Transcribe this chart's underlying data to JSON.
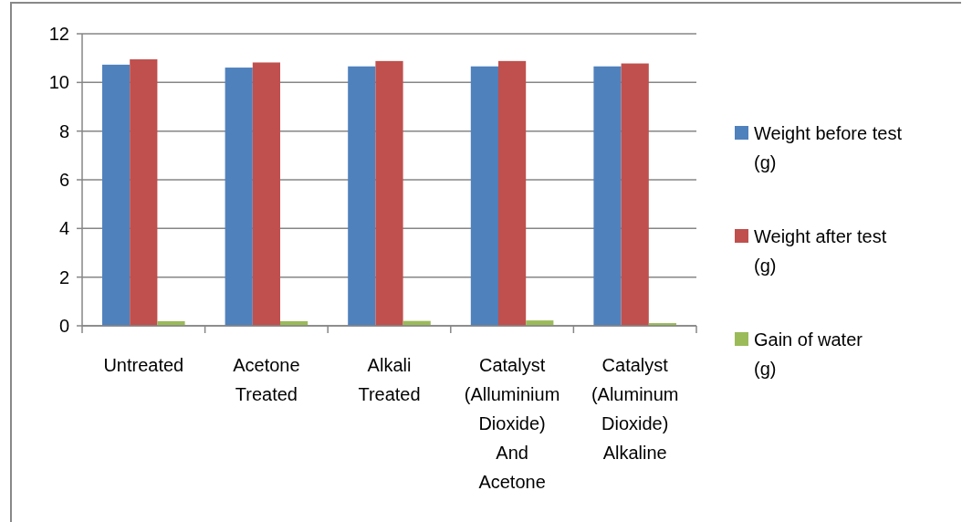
{
  "chart_data": {
    "type": "bar",
    "categories": [
      "Untreated",
      "Acetone Treated",
      "Alkali Treated",
      "Catalyst (Alluminium Dioxide) And Acetone",
      "Catalyst (Aluminum Dioxide) Alkaline"
    ],
    "series": [
      {
        "name": "Weight before test (g)",
        "color": "#4f81bd",
        "values": [
          10.73,
          10.61,
          10.66,
          10.66,
          10.66
        ]
      },
      {
        "name": "Weight after test (g)",
        "color": "#c0504d",
        "values": [
          10.95,
          10.82,
          10.88,
          10.88,
          10.78
        ]
      },
      {
        "name": "Gain of water (g)",
        "color": "#9bbb59",
        "values": [
          0.19,
          0.19,
          0.2,
          0.22,
          0.11
        ]
      }
    ],
    "ylim": [
      0,
      12
    ],
    "yticks": [
      0,
      2,
      4,
      6,
      8,
      10,
      12
    ],
    "grid": "y",
    "legend": "right"
  }
}
